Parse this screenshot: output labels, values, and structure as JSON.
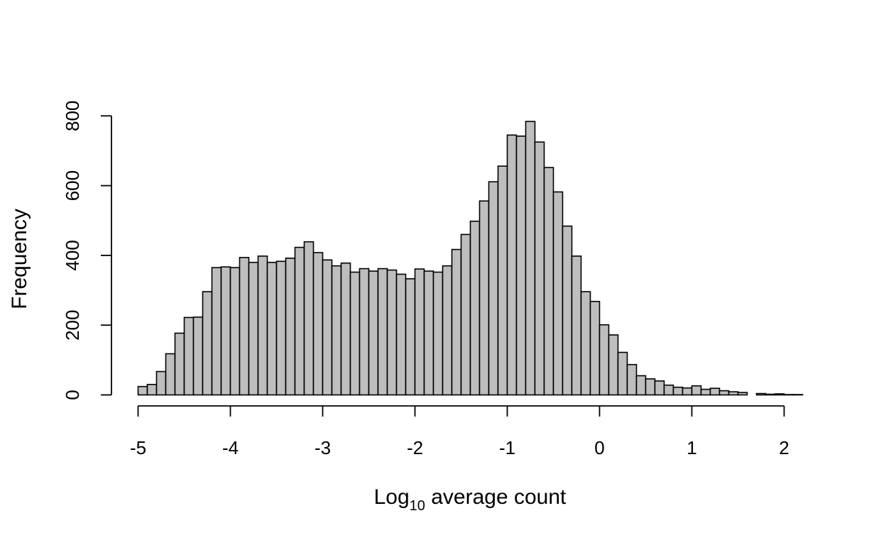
{
  "chart_data": {
    "type": "bar",
    "title": "",
    "xlabel": {
      "main": "Log",
      "subscript": "10",
      "rest": " average count"
    },
    "ylabel": "Frequency",
    "xlim": [
      -5,
      2.2
    ],
    "ylim": [
      0,
      800
    ],
    "x_ticks": [
      -5,
      -4,
      -3,
      -2,
      -1,
      0,
      1,
      2
    ],
    "x_tick_labels": [
      "-5",
      "-4",
      "-3",
      "-2",
      "-1",
      "0",
      "1",
      "2"
    ],
    "y_ticks": [
      0,
      200,
      400,
      600,
      800
    ],
    "y_tick_labels": [
      "0",
      "200",
      "400",
      "600",
      "800"
    ],
    "bin_width": 0.1,
    "bin_start": -5,
    "values": [
      24,
      30,
      67,
      118,
      177,
      222,
      223,
      296,
      365,
      367,
      365,
      394,
      380,
      398,
      380,
      383,
      392,
      423,
      439,
      408,
      387,
      370,
      378,
      352,
      362,
      355,
      362,
      358,
      346,
      333,
      361,
      355,
      352,
      370,
      417,
      460,
      498,
      556,
      611,
      656,
      745,
      742,
      784,
      725,
      652,
      582,
      484,
      398,
      296,
      268,
      201,
      172,
      122,
      87,
      55,
      46,
      40,
      28,
      22,
      20,
      26,
      16,
      19,
      12,
      9,
      7,
      0,
      4,
      2,
      3,
      1,
      1
    ],
    "grid": false,
    "legend": "none",
    "colors": {
      "bar_fill": "#bebebe",
      "bar_stroke": "#000000",
      "axis": "#000000"
    }
  }
}
